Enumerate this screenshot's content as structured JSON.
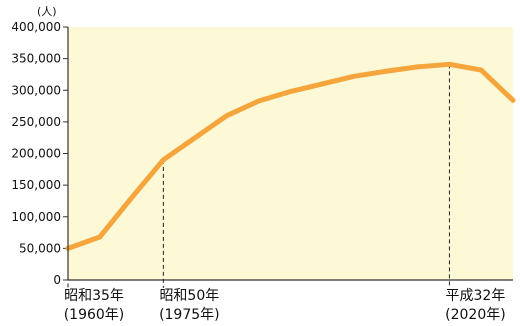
{
  "chart_data": {
    "type": "line",
    "ylabel": "(人)",
    "ylim": [
      0,
      400000
    ],
    "yticks": [
      "400,000",
      "350,000",
      "300,000",
      "250,000",
      "200,000",
      "150,000",
      "100,000",
      "50,000",
      "0"
    ],
    "ytick_values": [
      400000,
      350000,
      300000,
      250000,
      200000,
      150000,
      100000,
      50000,
      0
    ],
    "xlim": [
      1960,
      2030
    ],
    "x": [
      1960,
      1965,
      1970,
      1975,
      1980,
      1985,
      1990,
      1995,
      2000,
      2005,
      2010,
      2015,
      2020,
      2025,
      2030
    ],
    "values": [
      50000,
      68000,
      130000,
      190000,
      225000,
      260000,
      283000,
      298000,
      310000,
      322000,
      330000,
      337000,
      341000,
      332000,
      284000
    ],
    "guide_years": [
      1960,
      1975,
      2020
    ],
    "x_labels": [
      {
        "x": 1960,
        "line1": "昭和35年",
        "line2": "(1960年)"
      },
      {
        "x": 1975,
        "line1": "昭和50年",
        "line2": "(1975年)"
      },
      {
        "x": 2020,
        "line1": "平成32年",
        "line2": "(2020年)"
      }
    ],
    "grid": false,
    "colors": {
      "line": "#f5a53c",
      "plot_background": "#fdf8d6",
      "axis": "#333333"
    }
  }
}
